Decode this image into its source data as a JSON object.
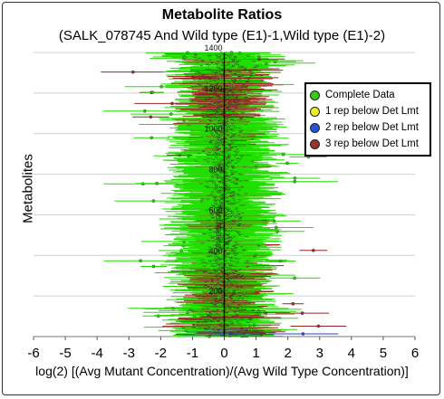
{
  "chart_data": {
    "type": "scatter",
    "title": "Metabolite Ratios",
    "subtitle": "(SALK_078745 And Wild type (E1)-1,Wild type (E1)-2)",
    "xlabel": "log(2) [(Avg Mutant Concentration)/(Avg Wild Type Concentration)]",
    "ylabel": "Metabolites",
    "xlim": [
      -6,
      6
    ],
    "ylim": [
      0,
      1400
    ],
    "x_ticks": [
      "-6",
      "-5",
      "-4",
      "-3",
      "-2",
      "-1",
      "0",
      "1",
      "2",
      "3",
      "4",
      "5",
      "6"
    ],
    "y_ticks": [
      "200",
      "400",
      "600",
      "800",
      "1000",
      "1200",
      "1400"
    ],
    "axis_annotation": "Metabolite",
    "grid": true,
    "legend_position": "top-right",
    "series": [
      {
        "name": "Complete Data",
        "color": "#22dd00",
        "marker_color": "#33cc11"
      },
      {
        "name": "1 rep below Det Lmt",
        "color": "#dddd00",
        "marker_color": "#eeee22"
      },
      {
        "name": "2 rep below Det Lmt",
        "color": "#2244cc",
        "marker_color": "#2255dd"
      },
      {
        "name": "3 rep below Det Lmt",
        "color": "#992222",
        "marker_color": "#993333"
      }
    ]
  }
}
